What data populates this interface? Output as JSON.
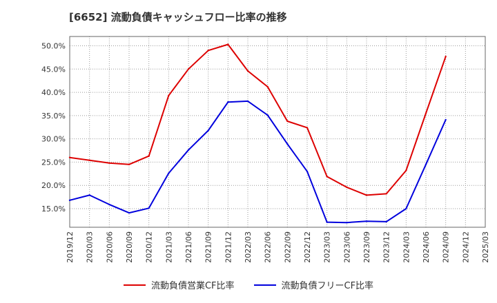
{
  "title": "[6652]  流動負債キャッシュフロー比率の推移",
  "colors": {
    "series1": "#dd0000",
    "series2": "#0000dd",
    "grid": "#999999",
    "frame": "#666666"
  },
  "chart_data": {
    "type": "line",
    "xlabel": "",
    "ylabel": "",
    "x": [
      "2019/12",
      "2020/03",
      "2020/06",
      "2020/09",
      "2020/12",
      "2021/03",
      "2021/06",
      "2021/09",
      "2021/12",
      "2022/03",
      "2022/06",
      "2022/09",
      "2022/12",
      "2023/03",
      "2023/06",
      "2023/09",
      "2023/12",
      "2024/03",
      "2024/06",
      "2024/09",
      "2024/12",
      "2025/03"
    ],
    "ylim": [
      11.0,
      52.0
    ],
    "yticks": [
      15,
      20,
      25,
      30,
      35,
      40,
      45,
      50
    ],
    "ytick_labels": [
      "15.0%",
      "20.0%",
      "25.0%",
      "30.0%",
      "35.0%",
      "40.0%",
      "45.0%",
      "50.0%"
    ],
    "grid": true,
    "legend_position": "bottom",
    "series": [
      {
        "name": "流動負債営業CF比率",
        "values": [
          26.0,
          25.4,
          24.8,
          24.5,
          26.3,
          39.3,
          45.0,
          49.0,
          50.3,
          44.6,
          41.2,
          33.8,
          32.4,
          21.9,
          19.6,
          17.9,
          18.2,
          23.2,
          35.5,
          47.7,
          null,
          null
        ]
      },
      {
        "name": "流動負債フリーCF比率",
        "values": [
          16.8,
          17.9,
          15.9,
          14.1,
          15.1,
          22.6,
          27.6,
          31.8,
          37.9,
          38.1,
          35.1,
          28.9,
          23.0,
          12.1,
          12.0,
          12.3,
          12.2,
          15.0,
          24.5,
          34.1,
          null,
          null
        ]
      }
    ]
  },
  "legend": {
    "series1_label": "流動負債営業CF比率",
    "series2_label": "流動負債フリーCF比率"
  }
}
